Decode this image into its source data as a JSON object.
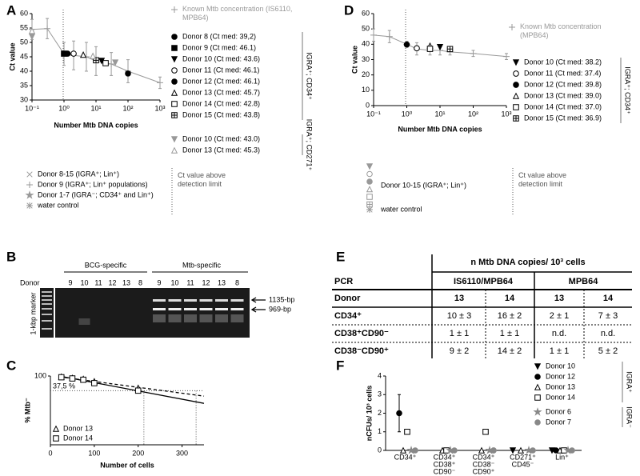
{
  "panel_labels": [
    "A",
    "B",
    "C",
    "D",
    "E",
    "F"
  ],
  "chart_data": [
    {
      "type": "scatter",
      "xlabel": "Number Mtb DNA copies",
      "ylabel": "Ct value",
      "xlog": true,
      "xlim": [
        0.1,
        1000
      ],
      "xticks": [
        {
          "value": 0.1,
          "label": "10⁻¹"
        },
        {
          "value": 1,
          "label": "10⁰"
        },
        {
          "value": 10,
          "label": "10¹"
        },
        {
          "value": 100,
          "label": "10²"
        },
        {
          "value": 1000,
          "label": "10³"
        }
      ],
      "ylim": [
        30,
        60
      ],
      "yticks": [
        30,
        35,
        40,
        45,
        50,
        55,
        60
      ],
      "series": [
        {
          "name": "Known Mtb concentration (IS6110, MPB64)",
          "marker": "plus",
          "color": "#999999",
          "line": true,
          "x": [
            0.1,
            0.3,
            1,
            2,
            5,
            10,
            30,
            100,
            1000
          ],
          "values": [
            54.5,
            54.8,
            46,
            45.5,
            45,
            43.5,
            42.5,
            40,
            36
          ],
          "errors": [
            3.5,
            3.5,
            4,
            5,
            5,
            5,
            4,
            4,
            2
          ]
        }
      ],
      "groups": [
        {
          "label": "IGRA⁺; CD34⁺",
          "series": [
            {
              "name": "Donor 8 (Ct med: 39,2)",
              "marker": "circle",
              "color": "#000000",
              "x": [
                100
              ],
              "values": [
                39.2
              ]
            },
            {
              "name": "Donor 9 (Ct med: 46.1)",
              "marker": "square",
              "color": "#000000",
              "x": [
                1
              ],
              "values": [
                46.1
              ]
            },
            {
              "name": "Donor 10 (Ct med: 43.6)",
              "marker": "triangle-down",
              "color": "#000000",
              "x": [
                15
              ],
              "values": [
                43.6
              ]
            },
            {
              "name": "Donor 11 (Ct med: 46.1)",
              "marker": "circle-open",
              "color": "#000000",
              "x": [
                2
              ],
              "values": [
                46.1
              ]
            },
            {
              "name": "Donor 12 (Ct med: 46.1)",
              "marker": "circle",
              "color": "#000000",
              "x": [
                1.3
              ],
              "values": [
                46.1
              ]
            },
            {
              "name": "Donor 13 (Ct med: 45.7)",
              "marker": "triangle-open",
              "color": "#000000",
              "x": [
                4
              ],
              "values": [
                45.7
              ]
            },
            {
              "name": "Donor 14 (Ct med: 42.8)",
              "marker": "square-open",
              "color": "#000000",
              "x": [
                20
              ],
              "values": [
                42.8
              ]
            },
            {
              "name": "Donor 15 (Ct med: 43.8)",
              "marker": "square-plus",
              "color": "#000000",
              "x": [
                10
              ],
              "values": [
                43.8
              ]
            }
          ]
        },
        {
          "label": "IGRA⁺; CD271⁺",
          "series": [
            {
              "name": "Donor 10 (Ct med: 43.0)",
              "marker": "triangle-down",
              "color": "#999999",
              "x": [
                0.1,
                40
              ],
              "values": [
                52,
                43.0
              ]
            },
            {
              "name": "Donor 13 (Ct med: 45.3)",
              "marker": "triangle-open",
              "color": "#999999",
              "x": [
                0.1,
                8
              ],
              "values": [
                54,
                45.3
              ]
            }
          ]
        }
      ],
      "legend_extra": [
        {
          "name": "Donor 8-15 (IGRA⁺; Lin⁺)",
          "marker": "x",
          "color": "#999999"
        },
        {
          "name": "Donor 9 (IGRA⁺; Lin⁺ populations)",
          "marker": "plus",
          "color": "#999999"
        },
        {
          "name": "Donor 1-7 (IGRA⁻; CD34⁺ and Lin⁺)",
          "marker": "star",
          "color": "#999999"
        },
        {
          "name": "water control",
          "marker": "asterisk",
          "color": "#999999"
        }
      ],
      "detection_note": "Ct value above detection limit"
    },
    {
      "type": "scatter",
      "xlabel": "Number Mtb DNA copies",
      "ylabel": "Ct value",
      "xlog": true,
      "xlim": [
        0.1,
        1000
      ],
      "xticks": [
        {
          "value": 0.1,
          "label": "10⁻¹"
        },
        {
          "value": 1,
          "label": "10⁰"
        },
        {
          "value": 10,
          "label": "10¹"
        },
        {
          "value": 100,
          "label": "10²"
        },
        {
          "value": 1000,
          "label": "10³"
        }
      ],
      "ylim": [
        0,
        60
      ],
      "yticks": [
        0,
        10,
        20,
        30,
        40,
        50,
        60
      ],
      "series": [
        {
          "name": "Known Mtb concentration (MPB64)",
          "marker": "plus",
          "color": "#999999",
          "line": true,
          "x": [
            0.1,
            0.3,
            1,
            2,
            5,
            10,
            20,
            100,
            1000
          ],
          "values": [
            46,
            45,
            40,
            37,
            36,
            36,
            35,
            34,
            32
          ],
          "errors": [
            4,
            4,
            2,
            4,
            3,
            3,
            2,
            2,
            2
          ]
        }
      ],
      "groups": [
        {
          "label": "IGRA⁺; CD34⁺",
          "series": [
            {
              "name": "Donor 10 (Ct med: 38.2)",
              "marker": "triangle-down",
              "color": "#000000",
              "x": [
                10
              ],
              "values": [
                38.2
              ]
            },
            {
              "name": "Donor 11 (Ct med: 37.4)",
              "marker": "circle-open",
              "color": "#000000",
              "x": [
                2
              ],
              "values": [
                37.4
              ]
            },
            {
              "name": "Donor 12 (Ct med: 39.8)",
              "marker": "circle",
              "color": "#000000",
              "x": [
                1
              ],
              "values": [
                39.8
              ]
            },
            {
              "name": "Donor 13 (Ct med: 39.0)",
              "marker": "triangle-open",
              "color": "#000000",
              "x": [
                5
              ],
              "values": [
                39.0
              ]
            },
            {
              "name": "Donor 14 (Ct med: 37.0)",
              "marker": "square-open",
              "color": "#000000",
              "x": [
                5
              ],
              "values": [
                37.0
              ]
            },
            {
              "name": "Donor 15 (Ct med: 36.9)",
              "marker": "square-plus",
              "color": "#000000",
              "x": [
                20
              ],
              "values": [
                36.9
              ]
            }
          ]
        }
      ],
      "legend_extra": [
        {
          "name": "Donor 10-15 (IGRA⁺; Lin⁺)",
          "marker": "stack",
          "color": "#999999"
        },
        {
          "name": "water control",
          "marker": "asterisk",
          "color": "#999999"
        }
      ],
      "detection_note": "Ct value above detection limit"
    },
    {
      "type": "scatter",
      "xlabel": "Number of cells",
      "ylabel": "% Mtb⁻",
      "ylog": true,
      "xlim": [
        0,
        350
      ],
      "xticks": [
        0,
        100,
        200,
        300
      ],
      "ylim": [
        1,
        100
      ],
      "yticks": [
        100
      ],
      "series": [
        {
          "name": "Donor 13",
          "marker": "triangle-open",
          "color": "#000000",
          "x": [
            25,
            50,
            75,
            100,
            200
          ],
          "values": [
            95,
            88,
            82,
            70,
            45
          ]
        },
        {
          "name": "Donor 14",
          "marker": "square-open",
          "color": "#000000",
          "x": [
            25,
            50,
            75,
            100,
            200
          ],
          "values": [
            92,
            85,
            78,
            62,
            37.5
          ]
        }
      ],
      "fits": [
        {
          "style": "solid",
          "x": [
            20,
            350
          ],
          "values": [
            100,
            16
          ]
        },
        {
          "style": "dashed",
          "x": [
            20,
            350
          ],
          "values": [
            95,
            26
          ]
        }
      ],
      "reference": {
        "value": 37.5,
        "label": "37,5 %",
        "x": [
          213,
          332
        ]
      }
    },
    {
      "type": "dot",
      "ylabel": "nCFUs/ 10³ cells",
      "ylim": [
        0,
        4
      ],
      "yticks": [
        0,
        1,
        2,
        3,
        4
      ],
      "categories": [
        [
          "CD34⁺"
        ],
        [
          "CD34⁺",
          "CD38⁺",
          "CD90⁻"
        ],
        [
          "CD34⁺",
          "CD38⁻",
          "CD90⁺"
        ],
        [
          "CD271⁺",
          "CD45⁻"
        ],
        [
          "Lin⁺"
        ]
      ],
      "groups": [
        {
          "label": "IGRA⁺",
          "series": [
            {
              "name": "Donor 10",
              "marker": "triangle-down",
              "color": "#000000",
              "values": [
                null,
                null,
                null,
                0,
                0
              ]
            },
            {
              "name": "Donor 12",
              "marker": "circle",
              "color": "#000000",
              "values": [
                2,
                null,
                null,
                null,
                0
              ],
              "errors": [
                1,
                null,
                null,
                null,
                null
              ]
            },
            {
              "name": "Donor 13",
              "marker": "triangle-open",
              "color": "#000000",
              "values": [
                0,
                0,
                0,
                0,
                0
              ]
            },
            {
              "name": "Donor 14",
              "marker": "square-open",
              "color": "#000000",
              "values": [
                1,
                0,
                1,
                null,
                0
              ]
            }
          ]
        },
        {
          "label": "IGRA⁻",
          "series": [
            {
              "name": "Donor 6",
              "marker": "star",
              "color": "#888888",
              "values": [
                0,
                0,
                0,
                0,
                0
              ]
            },
            {
              "name": "Donor 7",
              "marker": "circle",
              "color": "#888888",
              "values": [
                0,
                0,
                0,
                0,
                0
              ]
            }
          ]
        }
      ]
    }
  ],
  "gel": {
    "groups": [
      "BCG-specific",
      "Mtb-specific"
    ],
    "donor_label": "Donor",
    "lanes": [
      "9",
      "10",
      "11",
      "12",
      "13",
      "8",
      "9",
      "10",
      "11",
      "12",
      "13",
      "8"
    ],
    "marker_label": "1-kbp marker",
    "bands": [
      "1135-bp",
      "969-bp"
    ]
  },
  "table": {
    "title": "n Mtb DNA copies/ 10³ cells",
    "header": [
      "PCR",
      "IS6110/MPB64",
      "MPB64"
    ],
    "subheader": [
      "Donor",
      "13",
      "14",
      "13",
      "14"
    ],
    "rows": [
      [
        "CD34⁺",
        "10 ± 3",
        "16 ± 2",
        "2 ± 1",
        "7 ± 3"
      ],
      [
        "CD38⁺CD90⁻",
        "1 ± 1",
        "1 ± 1",
        "n.d.",
        "n.d."
      ],
      [
        "CD38⁻CD90⁺",
        "9 ± 2",
        "14 ± 2",
        "1 ± 1",
        "5 ± 2"
      ]
    ]
  }
}
